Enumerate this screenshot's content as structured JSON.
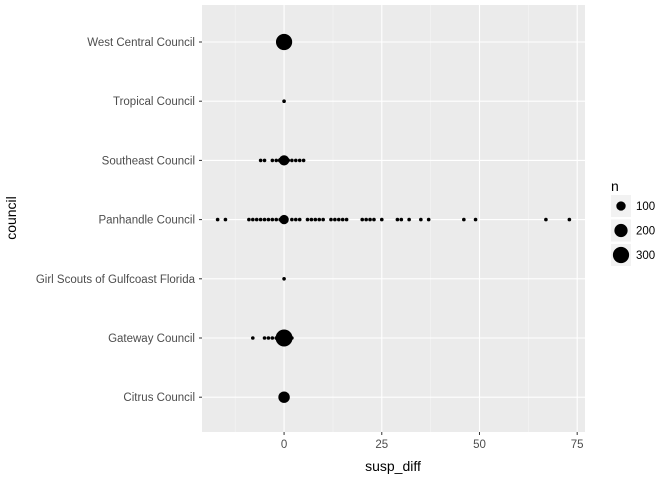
{
  "chart_data": {
    "type": "scatter",
    "title": "",
    "xlabel": "susp_diff",
    "ylabel": "council",
    "xlim": [
      -21,
      77
    ],
    "x_ticks": [
      0,
      25,
      50,
      75
    ],
    "x_tick_labels": [
      "0",
      "25",
      "50",
      "75"
    ],
    "categories": [
      "Citrus Council",
      "Gateway Council",
      "Girl Scouts of Gulfcoast Florida",
      "Panhandle Council",
      "Southeast Council",
      "Tropical Council",
      "West Central Council"
    ],
    "grid": true,
    "legend": {
      "title": "n",
      "position": "right",
      "entries": [
        {
          "label": "100",
          "value": 100
        },
        {
          "label": "200",
          "value": 200
        },
        {
          "label": "300",
          "value": 300
        }
      ]
    },
    "points": [
      {
        "category": "West Central Council",
        "x": 0,
        "n": 300
      },
      {
        "category": "Tropical Council",
        "x": 0,
        "n": 15
      },
      {
        "category": "Southeast Council",
        "x": -6,
        "n": 5
      },
      {
        "category": "Southeast Council",
        "x": -5,
        "n": 5
      },
      {
        "category": "Southeast Council",
        "x": -3,
        "n": 8
      },
      {
        "category": "Southeast Council",
        "x": -2,
        "n": 10
      },
      {
        "category": "Southeast Council",
        "x": -1,
        "n": 25
      },
      {
        "category": "Southeast Council",
        "x": 0,
        "n": 120
      },
      {
        "category": "Southeast Council",
        "x": 1,
        "n": 20
      },
      {
        "category": "Southeast Council",
        "x": 2,
        "n": 12
      },
      {
        "category": "Southeast Council",
        "x": 3,
        "n": 8
      },
      {
        "category": "Southeast Council",
        "x": 4,
        "n": 5
      },
      {
        "category": "Southeast Council",
        "x": 5,
        "n": 5
      },
      {
        "category": "Panhandle Council",
        "x": -17,
        "n": 3
      },
      {
        "category": "Panhandle Council",
        "x": -15,
        "n": 3
      },
      {
        "category": "Panhandle Council",
        "x": -9,
        "n": 4
      },
      {
        "category": "Panhandle Council",
        "x": -8,
        "n": 5
      },
      {
        "category": "Panhandle Council",
        "x": -7,
        "n": 5
      },
      {
        "category": "Panhandle Council",
        "x": -6,
        "n": 6
      },
      {
        "category": "Panhandle Council",
        "x": -5,
        "n": 6
      },
      {
        "category": "Panhandle Council",
        "x": -4,
        "n": 7
      },
      {
        "category": "Panhandle Council",
        "x": -3,
        "n": 8
      },
      {
        "category": "Panhandle Council",
        "x": -2,
        "n": 10
      },
      {
        "category": "Panhandle Council",
        "x": -1,
        "n": 15
      },
      {
        "category": "Panhandle Council",
        "x": 0,
        "n": 100
      },
      {
        "category": "Panhandle Council",
        "x": 2,
        "n": 8
      },
      {
        "category": "Panhandle Council",
        "x": 3,
        "n": 6
      },
      {
        "category": "Panhandle Council",
        "x": 4,
        "n": 5
      },
      {
        "category": "Panhandle Council",
        "x": 6,
        "n": 5
      },
      {
        "category": "Panhandle Council",
        "x": 7,
        "n": 4
      },
      {
        "category": "Panhandle Council",
        "x": 8,
        "n": 4
      },
      {
        "category": "Panhandle Council",
        "x": 9,
        "n": 4
      },
      {
        "category": "Panhandle Council",
        "x": 10,
        "n": 4
      },
      {
        "category": "Panhandle Council",
        "x": 12,
        "n": 4
      },
      {
        "category": "Panhandle Council",
        "x": 13,
        "n": 4
      },
      {
        "category": "Panhandle Council",
        "x": 14,
        "n": 4
      },
      {
        "category": "Panhandle Council",
        "x": 15,
        "n": 4
      },
      {
        "category": "Panhandle Council",
        "x": 16,
        "n": 3
      },
      {
        "category": "Panhandle Council",
        "x": 20,
        "n": 4
      },
      {
        "category": "Panhandle Council",
        "x": 21,
        "n": 4
      },
      {
        "category": "Panhandle Council",
        "x": 22,
        "n": 3
      },
      {
        "category": "Panhandle Council",
        "x": 23,
        "n": 3
      },
      {
        "category": "Panhandle Council",
        "x": 25,
        "n": 3
      },
      {
        "category": "Panhandle Council",
        "x": 29,
        "n": 3
      },
      {
        "category": "Panhandle Council",
        "x": 30,
        "n": 3
      },
      {
        "category": "Panhandle Council",
        "x": 32,
        "n": 3
      },
      {
        "category": "Panhandle Council",
        "x": 35,
        "n": 3
      },
      {
        "category": "Panhandle Council",
        "x": 37,
        "n": 3
      },
      {
        "category": "Panhandle Council",
        "x": 46,
        "n": 3
      },
      {
        "category": "Panhandle Council",
        "x": 49,
        "n": 6
      },
      {
        "category": "Panhandle Council",
        "x": 67,
        "n": 3
      },
      {
        "category": "Panhandle Council",
        "x": 73,
        "n": 3
      },
      {
        "category": "Girl Scouts of Gulfcoast Florida",
        "x": 0,
        "n": 5
      },
      {
        "category": "Gateway Council",
        "x": -8,
        "n": 5
      },
      {
        "category": "Gateway Council",
        "x": -5,
        "n": 8
      },
      {
        "category": "Gateway Council",
        "x": -4,
        "n": 10
      },
      {
        "category": "Gateway Council",
        "x": -3,
        "n": 12
      },
      {
        "category": "Gateway Council",
        "x": -2,
        "n": 15
      },
      {
        "category": "Gateway Council",
        "x": -1,
        "n": 30
      },
      {
        "category": "Gateway Council",
        "x": 0,
        "n": 330
      },
      {
        "category": "Gateway Council",
        "x": 1,
        "n": 30
      },
      {
        "category": "Gateway Council",
        "x": 2,
        "n": 12
      },
      {
        "category": "Citrus Council",
        "x": 0,
        "n": 150
      }
    ]
  }
}
